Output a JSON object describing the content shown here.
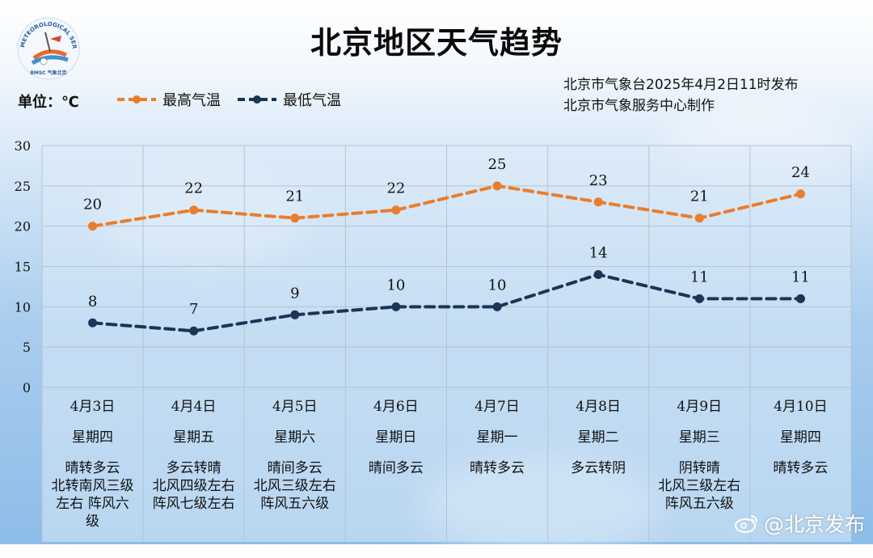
{
  "header": {
    "title": "北京地区天气趋势",
    "unit_label": "单位：℃",
    "issuer_line1": "北京市气象台2025年4月2日11时发布",
    "issuer_line2": "北京市气象服务中心制作",
    "watermark": "@北京发布"
  },
  "logo": {
    "arc_text": "METEOROLOGICAL SERVICE",
    "bottom_text": "BMSC 气象北京"
  },
  "colors": {
    "high": "#ea7d2b",
    "low": "#1c3556",
    "grid": "#b5c3d0",
    "plot_bg": "rgba(220,235,248,0.55)"
  },
  "chart_data": {
    "type": "line",
    "categories": [
      "4月3日",
      "4月4日",
      "4月5日",
      "4月6日",
      "4月7日",
      "4月8日",
      "4月9日",
      "4月10日"
    ],
    "weekdays": [
      "星期四",
      "星期五",
      "星期六",
      "星期日",
      "星期一",
      "星期二",
      "星期三",
      "星期四"
    ],
    "conditions": [
      "晴转多云\n北转南风三级\n左右  阵风六\n级",
      "多云转晴\n北风四级左右\n阵风七级左右",
      "晴间多云\n北风三级左右\n阵风五六级",
      "晴间多云",
      "晴转多云",
      "多云转阴",
      "阴转晴\n北风三级左右\n阵风五六级",
      "晴转多云"
    ],
    "series": [
      {
        "name": "最高气温",
        "values": [
          20,
          22,
          21,
          22,
          25,
          23,
          21,
          24
        ]
      },
      {
        "name": "最低气温",
        "values": [
          8,
          7,
          9,
          10,
          10,
          14,
          11,
          11
        ]
      }
    ],
    "ylim": [
      0,
      30
    ],
    "yticks": [
      0,
      5,
      10,
      15,
      20,
      25,
      30
    ],
    "grid": true,
    "legend": "top-left"
  }
}
